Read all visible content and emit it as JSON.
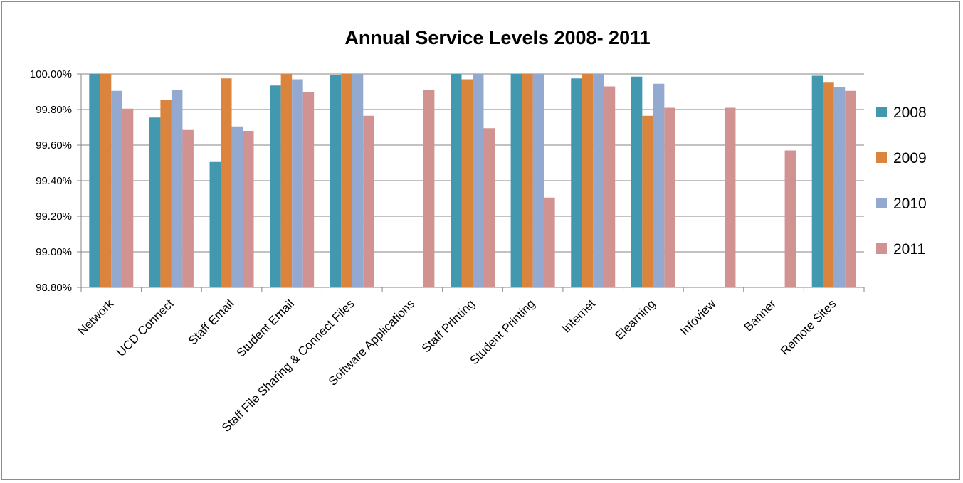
{
  "chart_data": {
    "type": "bar",
    "title": "Annual Service Levels 2008- 2011",
    "xlabel": "",
    "ylabel": "",
    "ylim": [
      0.988,
      1.0
    ],
    "yticks": [
      "98.80%",
      "99.00%",
      "99.20%",
      "99.40%",
      "99.60%",
      "99.80%",
      "100.00%"
    ],
    "ytick_values": [
      0.988,
      0.99,
      0.992,
      0.994,
      0.996,
      0.998,
      1.0
    ],
    "grid": true,
    "legend_position": "right",
    "categories": [
      "Network",
      "UCD Connect",
      "Staff Email",
      "Student Email",
      "Staff File Sharing & Connect Files",
      "Software Applications",
      "Staff Printing",
      "Student Printing",
      "Internet",
      "Elearning",
      "Infoview",
      "Banner",
      "Remote Sites"
    ],
    "series": [
      {
        "name": "2008",
        "color": "#4198AF",
        "values": [
          1.0,
          0.99755,
          0.99505,
          0.99935,
          0.99995,
          null,
          1.0,
          1.0,
          0.99975,
          0.99985,
          null,
          null,
          0.9999
        ]
      },
      {
        "name": "2009",
        "color": "#DB843D",
        "values": [
          1.0,
          0.99855,
          0.99975,
          1.0,
          1.0,
          null,
          0.9997,
          1.0,
          1.0,
          0.99765,
          null,
          null,
          0.99955
        ]
      },
      {
        "name": "2010",
        "color": "#93A9CF",
        "values": [
          0.99905,
          0.9991,
          0.99705,
          0.9997,
          1.0,
          null,
          1.0,
          1.0,
          1.0,
          0.99945,
          null,
          null,
          0.99925
        ]
      },
      {
        "name": "2011",
        "color": "#D19392",
        "values": [
          0.99805,
          0.99685,
          0.9968,
          0.999,
          0.99765,
          0.9991,
          0.99695,
          0.99305,
          0.9993,
          0.9981,
          0.9981,
          0.9957,
          0.99905
        ]
      }
    ]
  }
}
